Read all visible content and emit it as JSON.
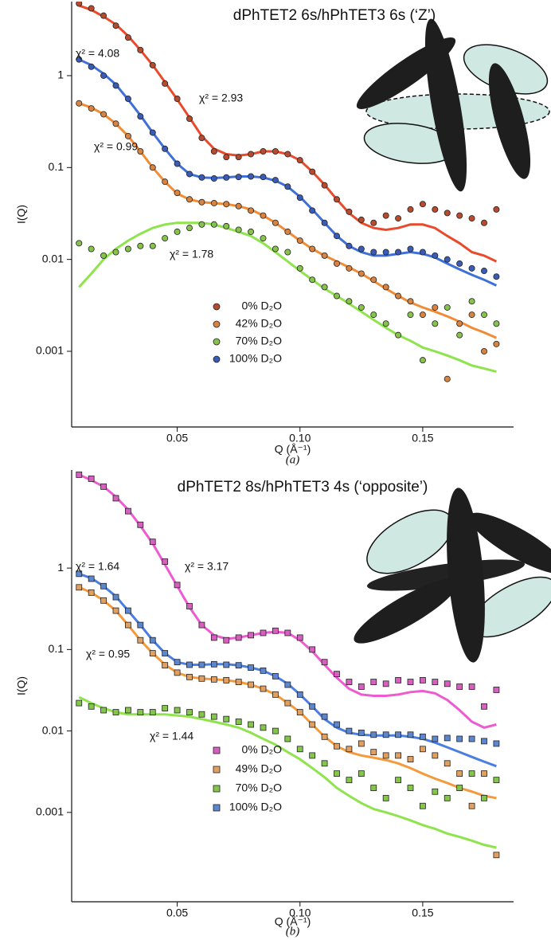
{
  "chart_data": [
    {
      "type": "scatter",
      "title": "dPhTET2 6s/hPhTET3 6s (‘Z’)",
      "x_label": "Q (Å⁻¹)",
      "y_label": "I(Q)",
      "caption": "(a)",
      "y_log": true,
      "marker": "circle",
      "xlim": [
        0.007,
        0.187
      ],
      "ylim": [
        0.00015,
        6.4
      ],
      "xticks": [
        0.05,
        {
          "value": 0.1,
          "label": "0.10"
        },
        0.15
      ],
      "yticks": [
        0.001,
        0.01,
        0.1,
        1
      ],
      "annotations": [
        "χ² = 4.08",
        "χ² = 2.93",
        "χ² = 0.99",
        "χ² = 1.78"
      ],
      "x": [
        0.01,
        0.015,
        0.02,
        0.025,
        0.03,
        0.035,
        0.04,
        0.045,
        0.05,
        0.055,
        0.06,
        0.065,
        0.07,
        0.075,
        0.08,
        0.085,
        0.09,
        0.095,
        0.1,
        0.105,
        0.11,
        0.115,
        0.12,
        0.125,
        0.13,
        0.135,
        0.14,
        0.145,
        0.15,
        0.155,
        0.16,
        0.165,
        0.17,
        0.175,
        0.18
      ],
      "series": [
        {
          "name": "0% D₂O",
          "color": "#ea4a2c",
          "marker_color": "#b84a2e",
          "values": [
            6.1,
            5.4,
            4.5,
            3.5,
            2.6,
            1.9,
            1.3,
            0.82,
            0.56,
            0.34,
            0.21,
            0.15,
            0.13,
            0.13,
            0.14,
            0.15,
            0.15,
            0.14,
            0.12,
            0.09,
            0.064,
            0.045,
            0.033,
            0.027,
            0.025,
            0.03,
            0.028,
            0.035,
            0.04,
            0.035,
            0.032,
            0.03,
            0.028,
            0.025,
            0.035
          ],
          "fit": [
            5.8,
            5.2,
            4.4,
            3.6,
            2.7,
            1.9,
            1.3,
            0.85,
            0.55,
            0.35,
            0.22,
            0.16,
            0.14,
            0.135,
            0.14,
            0.15,
            0.15,
            0.14,
            0.12,
            0.09,
            0.065,
            0.045,
            0.032,
            0.025,
            0.022,
            0.021,
            0.022,
            0.024,
            0.024,
            0.022,
            0.018,
            0.015,
            0.012,
            0.011,
            0.0095
          ]
        },
        {
          "name": "42% D₂O",
          "color": "#f28c34",
          "marker_color": "#d98340",
          "values": [
            0.5,
            0.44,
            0.38,
            0.3,
            0.22,
            0.15,
            0.1,
            0.07,
            0.053,
            0.045,
            0.042,
            0.041,
            0.04,
            0.038,
            0.034,
            0.03,
            0.025,
            0.02,
            0.016,
            0.013,
            0.011,
            0.009,
            0.008,
            0.007,
            0.006,
            0.005,
            0.004,
            0.0035,
            0.0025,
            0.003,
            0.0005,
            0.002,
            0.0025,
            0.001,
            0.0012
          ],
          "fit": [
            0.5,
            0.45,
            0.38,
            0.3,
            0.22,
            0.15,
            0.1,
            0.07,
            0.052,
            0.045,
            0.042,
            0.041,
            0.04,
            0.038,
            0.035,
            0.03,
            0.025,
            0.02,
            0.016,
            0.013,
            0.011,
            0.0095,
            0.0082,
            0.007,
            0.0058,
            0.0048,
            0.004,
            0.0034,
            0.003,
            0.0027,
            0.0024,
            0.0021,
            0.0018,
            0.0016,
            0.0014
          ]
        },
        {
          "name": "70% D₂O",
          "color": "#8fe34c",
          "marker_color": "#86c24c",
          "values": [
            0.015,
            0.013,
            0.011,
            0.012,
            0.013,
            0.014,
            0.014,
            0.017,
            0.02,
            0.022,
            0.024,
            0.024,
            0.023,
            0.021,
            0.02,
            0.017,
            0.013,
            0.012,
            0.008,
            0.006,
            0.005,
            0.004,
            0.0035,
            0.003,
            0.0025,
            0.002,
            0.0015,
            0.0025,
            0.0008,
            0.002,
            0.003,
            0.0015,
            0.0035,
            0.0025,
            0.002
          ],
          "fit": [
            0.005,
            0.007,
            0.01,
            0.013,
            0.016,
            0.019,
            0.022,
            0.024,
            0.025,
            0.025,
            0.025,
            0.024,
            0.022,
            0.02,
            0.018,
            0.015,
            0.012,
            0.0095,
            0.0075,
            0.006,
            0.0048,
            0.004,
            0.0033,
            0.0027,
            0.0022,
            0.0018,
            0.0015,
            0.0013,
            0.0011,
            0.001,
            0.0009,
            0.0008,
            0.0007,
            0.00065,
            0.0006
          ]
        },
        {
          "name": "100% D₂O",
          "color": "#3f6fd8",
          "marker_color": "#3a5cb6",
          "values": [
            1.5,
            1.25,
            1.0,
            0.78,
            0.56,
            0.36,
            0.24,
            0.16,
            0.11,
            0.085,
            0.078,
            0.076,
            0.078,
            0.079,
            0.08,
            0.079,
            0.073,
            0.062,
            0.047,
            0.034,
            0.025,
            0.018,
            0.014,
            0.013,
            0.012,
            0.012,
            0.012,
            0.013,
            0.012,
            0.011,
            0.01,
            0.009,
            0.008,
            0.0075,
            0.0065
          ],
          "fit": [
            1.5,
            1.3,
            1.05,
            0.8,
            0.55,
            0.37,
            0.24,
            0.16,
            0.11,
            0.085,
            0.078,
            0.077,
            0.078,
            0.08,
            0.08,
            0.078,
            0.072,
            0.062,
            0.048,
            0.035,
            0.025,
            0.018,
            0.014,
            0.012,
            0.011,
            0.011,
            0.0115,
            0.012,
            0.0115,
            0.0105,
            0.009,
            0.0078,
            0.0068,
            0.006,
            0.0052
          ]
        }
      ]
    },
    {
      "type": "scatter",
      "title": "dPhTET2 8s/hPhTET3 4s (‘opposite’)",
      "x_label": "Q (Å⁻¹)",
      "y_label": "I(Q)",
      "caption": "(b)",
      "y_log": true,
      "marker": "square",
      "xlim": [
        0.007,
        0.187
      ],
      "ylim": [
        8e-05,
        16
      ],
      "xticks": [
        0.05,
        {
          "value": 0.1,
          "label": "0.10"
        },
        0.15
      ],
      "yticks": [
        0.001,
        0.01,
        0.1,
        1
      ],
      "annotations": [
        "χ² = 1.64",
        "χ² = 3.17",
        "χ² = 0.95",
        "χ² = 1.44"
      ],
      "x": [
        0.01,
        0.015,
        0.02,
        0.025,
        0.03,
        0.035,
        0.04,
        0.045,
        0.05,
        0.055,
        0.06,
        0.065,
        0.07,
        0.075,
        0.08,
        0.085,
        0.09,
        0.095,
        0.1,
        0.105,
        0.11,
        0.115,
        0.12,
        0.125,
        0.13,
        0.135,
        0.14,
        0.145,
        0.15,
        0.155,
        0.16,
        0.165,
        0.17,
        0.175,
        0.18
      ],
      "series": [
        {
          "name": "0% D₂O",
          "color": "#ee5bd0",
          "marker_color": "#d65fbf",
          "values": [
            14,
            12.5,
            10,
            7.2,
            5,
            3.4,
            2.1,
            1.2,
            0.62,
            0.34,
            0.2,
            0.14,
            0.13,
            0.14,
            0.15,
            0.16,
            0.17,
            0.16,
            0.14,
            0.1,
            0.07,
            0.05,
            0.04,
            0.035,
            0.04,
            0.038,
            0.042,
            0.04,
            0.042,
            0.04,
            0.038,
            0.035,
            0.035,
            0.02,
            0.032
          ],
          "fit": [
            14,
            12,
            10,
            7.5,
            5.2,
            3.3,
            2,
            1.1,
            0.6,
            0.33,
            0.2,
            0.15,
            0.135,
            0.14,
            0.15,
            0.16,
            0.165,
            0.16,
            0.13,
            0.095,
            0.065,
            0.045,
            0.033,
            0.028,
            0.027,
            0.027,
            0.028,
            0.03,
            0.031,
            0.029,
            0.024,
            0.018,
            0.013,
            0.011,
            0.012
          ]
        },
        {
          "name": "49% D₂O",
          "color": "#f59a3c",
          "marker_color": "#e2a060",
          "values": [
            0.58,
            0.5,
            0.4,
            0.3,
            0.2,
            0.13,
            0.09,
            0.064,
            0.052,
            0.046,
            0.044,
            0.043,
            0.042,
            0.04,
            0.037,
            0.033,
            0.028,
            0.022,
            0.017,
            0.012,
            0.0085,
            0.0065,
            0.006,
            0.007,
            0.0055,
            0.005,
            0.005,
            0.0045,
            0.006,
            0.005,
            0.004,
            0.003,
            0.0012,
            0.003,
            0.0003
          ],
          "fit": [
            0.58,
            0.5,
            0.4,
            0.3,
            0.2,
            0.13,
            0.09,
            0.065,
            0.052,
            0.046,
            0.044,
            0.043,
            0.042,
            0.04,
            0.037,
            0.033,
            0.028,
            0.022,
            0.017,
            0.012,
            0.0085,
            0.0065,
            0.0055,
            0.005,
            0.0047,
            0.0044,
            0.004,
            0.0035,
            0.003,
            0.0026,
            0.0023,
            0.002,
            0.0018,
            0.0016,
            0.0015
          ]
        },
        {
          "name": "70% D₂O",
          "color": "#8fe34c",
          "marker_color": "#84c64a",
          "values": [
            0.022,
            0.02,
            0.018,
            0.017,
            0.018,
            0.017,
            0.017,
            0.019,
            0.018,
            0.017,
            0.016,
            0.015,
            0.014,
            0.013,
            0.012,
            0.011,
            0.01,
            0.008,
            0.006,
            0.005,
            0.004,
            0.003,
            0.0025,
            0.003,
            0.002,
            0.0015,
            0.0025,
            0.002,
            0.0012,
            0.0018,
            0.0015,
            0.002,
            0.003,
            0.0015,
            0.0025
          ],
          "fit": [
            0.026,
            0.022,
            0.019,
            0.017,
            0.016,
            0.016,
            0.016,
            0.016,
            0.0155,
            0.015,
            0.014,
            0.013,
            0.012,
            0.011,
            0.0095,
            0.008,
            0.0068,
            0.0055,
            0.0045,
            0.0035,
            0.0027,
            0.002,
            0.0016,
            0.0013,
            0.0011,
            0.001,
            0.0009,
            0.0008,
            0.0007,
            0.00063,
            0.00055,
            0.0005,
            0.00045,
            0.0004,
            0.00037
          ]
        },
        {
          "name": "100% D₂O",
          "color": "#4a7ee0",
          "marker_color": "#5b86d0",
          "values": [
            0.85,
            0.74,
            0.6,
            0.44,
            0.3,
            0.2,
            0.13,
            0.09,
            0.07,
            0.065,
            0.065,
            0.066,
            0.065,
            0.064,
            0.06,
            0.055,
            0.047,
            0.037,
            0.028,
            0.02,
            0.015,
            0.012,
            0.01,
            0.0095,
            0.009,
            0.009,
            0.009,
            0.009,
            0.0085,
            0.008,
            0.0082,
            0.008,
            0.008,
            0.0075,
            0.007
          ],
          "fit": [
            0.85,
            0.75,
            0.6,
            0.45,
            0.3,
            0.2,
            0.13,
            0.09,
            0.07,
            0.065,
            0.065,
            0.066,
            0.066,
            0.064,
            0.06,
            0.055,
            0.047,
            0.038,
            0.028,
            0.02,
            0.014,
            0.011,
            0.0095,
            0.009,
            0.0088,
            0.0088,
            0.0088,
            0.0085,
            0.008,
            0.0072,
            0.0063,
            0.0055,
            0.0048,
            0.0042,
            0.0037
          ]
        }
      ]
    }
  ]
}
